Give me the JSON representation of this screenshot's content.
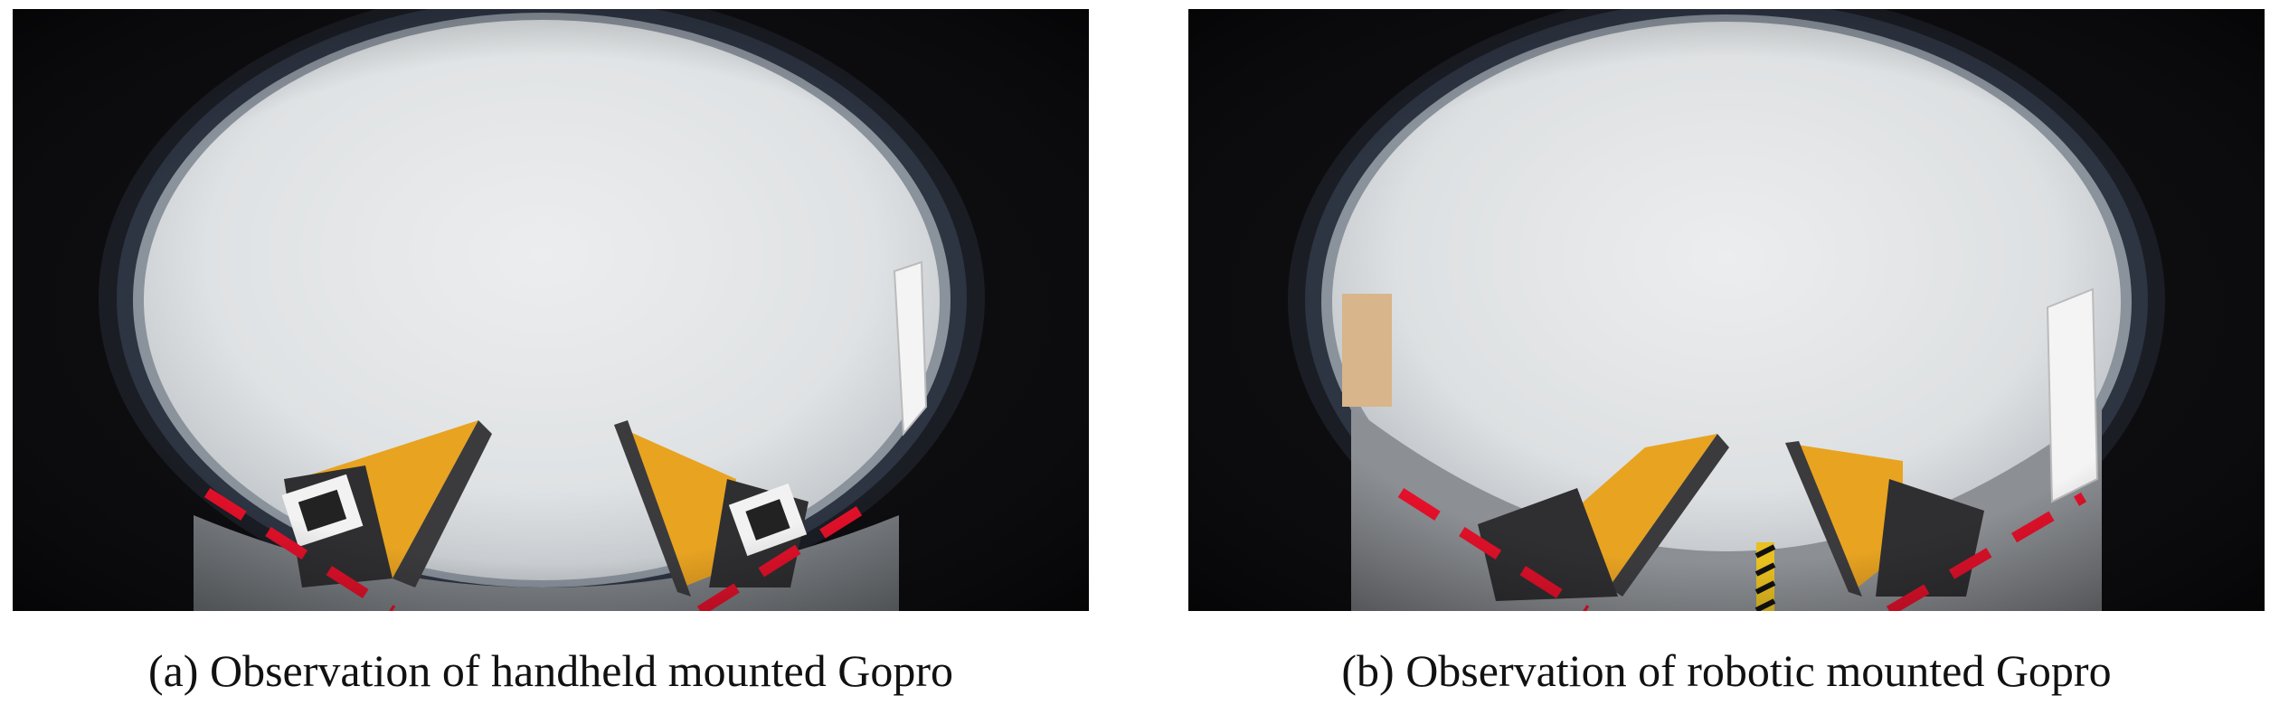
{
  "figure": {
    "captions": [
      "(a) Observation of handheld mounted Gopro",
      "(b) Observation of robotic mounted Gopro"
    ]
  },
  "colors": {
    "background_dark": "#0b0b0d",
    "lens_wall": "#dfe2e4",
    "gripper_finger": "#e8a321",
    "gripper_body": "#3b3b3d",
    "dashed_line": "#e8102a",
    "floor": "#8c8f93"
  }
}
